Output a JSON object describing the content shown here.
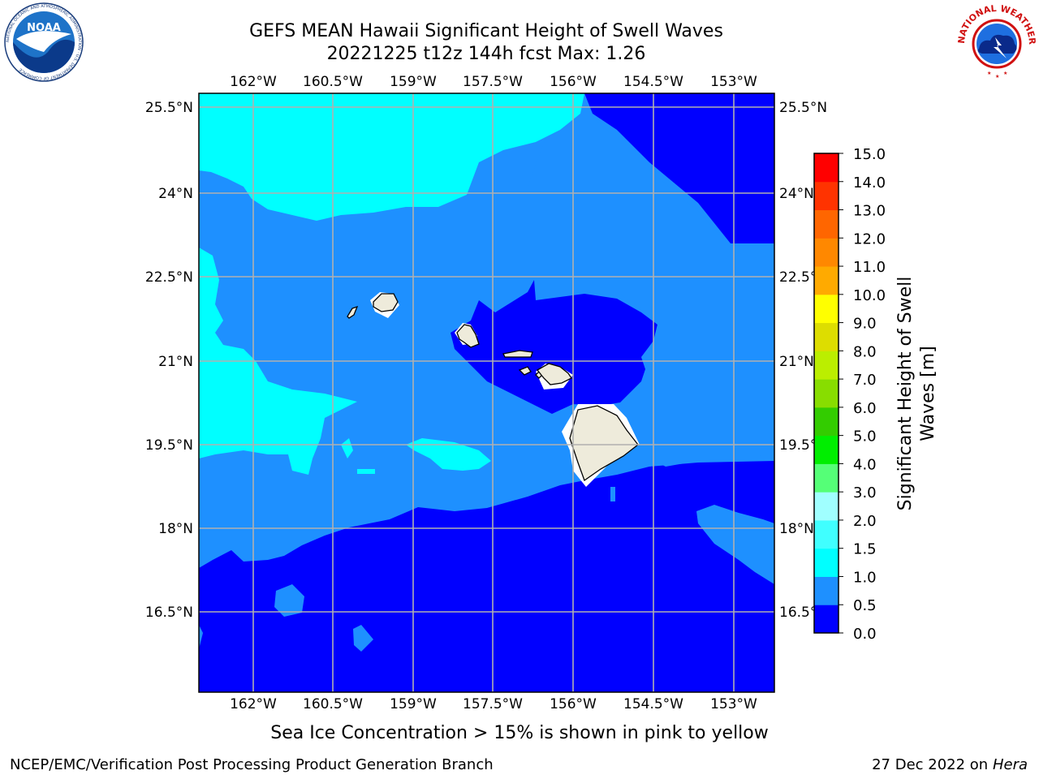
{
  "header": {
    "title_line1": "GEFS MEAN Hawaii Significant Height of Swell Waves",
    "title_line2": "20221225 t12z 144h fcst   Max: 1.26"
  },
  "logos": {
    "left": {
      "name": "NOAA",
      "arc_text": "NATIONAL OCEANIC AND ATMOSPHERIC ADMINISTRATION · U.S. DEPARTMENT OF COMMERCE"
    },
    "right": {
      "arc_text": "NATIONAL WEATHER SERVICE"
    }
  },
  "map": {
    "lon_labels": [
      "162°W",
      "160.5°W",
      "159°W",
      "157.5°W",
      "156°W",
      "154.5°W",
      "153°W"
    ],
    "lat_labels": [
      "25.5°N",
      "24°N",
      "22.5°N",
      "21°N",
      "19.5°N",
      "18°N",
      "16.5°N"
    ],
    "islands": [
      "Niihau",
      "Kauai",
      "Oahu",
      "Molokai",
      "Lanai",
      "Kahoolawe",
      "Maui",
      "Hawaii"
    ]
  },
  "colorbar": {
    "label_line1": "Significant Height of Swell",
    "label_line2": "Waves [m]",
    "ticks": [
      "15.0",
      "14.0",
      "13.0",
      "12.0",
      "11.0",
      "10.0",
      "9.0",
      "8.0",
      "7.0",
      "6.0",
      "5.0",
      "4.0",
      "3.0",
      "2.0",
      "1.5",
      "1.0",
      "0.5",
      "0.0"
    ],
    "colors": [
      "#0000ff",
      "#1e90ff",
      "#00ffff",
      "#40ffff",
      "#80ffff",
      "#a0ffff",
      "#55ff77",
      "#00ee00",
      "#33cc00",
      "#88dd00",
      "#bbee00",
      "#dddd00",
      "#ffff00",
      "#ffcc00",
      "#ffaa00",
      "#ff8800",
      "#ff6600",
      "#ff3300",
      "#ff0000"
    ]
  },
  "footer": {
    "note": "Sea Ice Concentration > 15% is shown in pink to yellow",
    "left": "NCEP/EMC/Verification Post Processing Product Generation Branch",
    "right_date": "27 Dec 2022 on",
    "right_host": "Hera"
  }
}
